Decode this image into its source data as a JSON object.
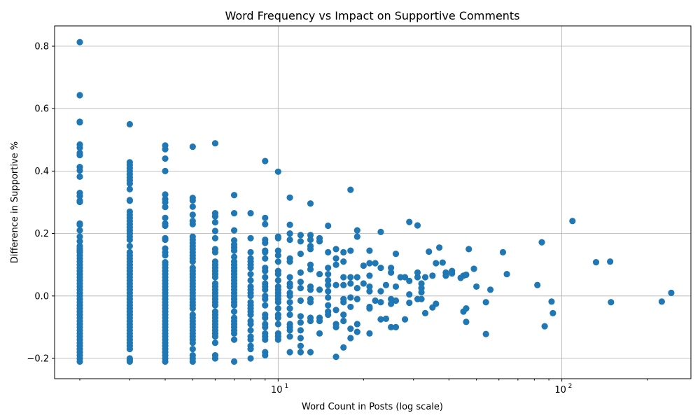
{
  "chart_data": {
    "type": "scatter",
    "title": "Word Frequency vs Impact on Supportive Comments",
    "xlabel": "Word Count in Posts (log scale)",
    "ylabel": "Difference in Supportive %",
    "x_scale": "log",
    "xlim": [
      1.63,
      285
    ],
    "ylim": [
      -0.265,
      0.865
    ],
    "grid": true,
    "color": "#1f77b4",
    "x_major_ticks": [
      {
        "value": 10,
        "base": "10",
        "exp": "1"
      },
      {
        "value": 100,
        "base": "10",
        "exp": "2"
      }
    ],
    "y_ticks": [
      {
        "value": -0.2,
        "label": "−0.2"
      },
      {
        "value": 0.0,
        "label": "0.0"
      },
      {
        "value": 0.2,
        "label": "0.2"
      },
      {
        "value": 0.4,
        "label": "0.4"
      },
      {
        "value": 0.6,
        "label": "0.6"
      },
      {
        "value": 0.8,
        "label": "0.8"
      }
    ],
    "columns": [
      {
        "x": 2,
        "y": [
          0.813,
          0.643,
          0.558,
          0.556,
          0.485,
          0.475,
          0.458,
          0.451,
          0.413,
          0.402,
          0.382,
          0.33,
          0.32,
          0.305,
          0.302,
          0.301,
          0.232,
          0.228,
          0.21,
          0.19,
          0.175,
          0.16,
          0.152,
          0.145,
          0.14,
          0.13,
          0.12,
          0.11,
          0.1,
          0.09,
          0.08,
          0.07,
          0.06,
          0.05,
          0.04,
          0.03,
          0.02,
          0.01,
          0.0,
          -0.01,
          -0.02,
          -0.03,
          -0.04,
          -0.05,
          -0.06,
          -0.07,
          -0.08,
          -0.09,
          -0.1,
          -0.11,
          -0.12,
          -0.13,
          -0.14,
          -0.15,
          -0.16,
          -0.17,
          -0.18,
          -0.19,
          -0.2,
          -0.21
        ]
      },
      {
        "x": 3,
        "y": [
          0.55,
          0.428,
          0.42,
          0.41,
          0.4,
          0.39,
          0.38,
          0.37,
          0.36,
          0.342,
          0.307,
          0.305,
          0.27,
          0.26,
          0.25,
          0.24,
          0.23,
          0.22,
          0.21,
          0.2,
          0.19,
          0.18,
          0.16,
          0.14,
          0.13,
          0.12,
          0.11,
          0.1,
          0.09,
          0.08,
          0.07,
          0.06,
          0.05,
          0.04,
          0.03,
          0.02,
          0.01,
          0.0,
          -0.01,
          -0.02,
          -0.03,
          -0.04,
          -0.05,
          -0.06,
          -0.07,
          -0.08,
          -0.09,
          -0.1,
          -0.11,
          -0.12,
          -0.13,
          -0.14,
          -0.15,
          -0.16,
          -0.17,
          -0.2,
          -0.205,
          -0.21
        ]
      },
      {
        "x": 4,
        "y": [
          0.482,
          0.47,
          0.44,
          0.4,
          0.325,
          0.31,
          0.3,
          0.285,
          0.25,
          0.232,
          0.225,
          0.185,
          0.18,
          0.152,
          0.14,
          0.13,
          0.108,
          0.1,
          0.09,
          0.08,
          0.07,
          0.06,
          0.05,
          0.04,
          0.03,
          0.02,
          0.01,
          0.0,
          -0.01,
          -0.02,
          -0.03,
          -0.04,
          -0.05,
          -0.06,
          -0.07,
          -0.08,
          -0.09,
          -0.1,
          -0.11,
          -0.12,
          -0.13,
          -0.14,
          -0.15,
          -0.16,
          -0.17,
          -0.18,
          -0.19,
          -0.2,
          -0.21
        ]
      },
      {
        "x": 5,
        "y": [
          0.478,
          0.314,
          0.306,
          0.286,
          0.26,
          0.24,
          0.23,
          0.19,
          0.18,
          0.17,
          0.16,
          0.15,
          0.14,
          0.13,
          0.12,
          0.11,
          0.09,
          0.08,
          0.07,
          0.06,
          0.05,
          0.04,
          0.03,
          0.02,
          0.01,
          0.0,
          -0.01,
          -0.02,
          -0.03,
          -0.04,
          -0.06,
          -0.07,
          -0.08,
          -0.09,
          -0.1,
          -0.11,
          -0.12,
          -0.13,
          -0.14,
          -0.15,
          -0.17,
          -0.19,
          -0.2,
          -0.21
        ]
      },
      {
        "x": 6,
        "y": [
          0.489,
          0.265,
          0.255,
          0.236,
          0.208,
          0.185,
          0.15,
          0.14,
          0.11,
          0.1,
          0.09,
          0.08,
          0.07,
          0.06,
          0.04,
          0.03,
          0.02,
          0.01,
          0.0,
          -0.01,
          -0.02,
          -0.03,
          -0.05,
          -0.06,
          -0.07,
          -0.08,
          -0.09,
          -0.1,
          -0.11,
          -0.12,
          -0.13,
          -0.15,
          -0.19,
          -0.2
        ]
      },
      {
        "x": 7,
        "y": [
          0.323,
          0.265,
          0.21,
          0.178,
          0.165,
          0.155,
          0.145,
          0.125,
          0.11,
          0.1,
          0.09,
          0.08,
          0.07,
          0.06,
          0.05,
          0.04,
          0.03,
          0.02,
          0.01,
          0.0,
          -0.01,
          -0.02,
          -0.03,
          -0.05,
          -0.07,
          -0.08,
          -0.09,
          -0.1,
          -0.11,
          -0.12,
          -0.14,
          -0.21
        ]
      },
      {
        "x": 8,
        "y": [
          0.265,
          0.185,
          0.14,
          0.12,
          0.11,
          0.1,
          0.09,
          0.07,
          0.05,
          0.03,
          0.02,
          0.01,
          0.0,
          -0.02,
          -0.03,
          -0.04,
          -0.05,
          -0.06,
          -0.08,
          -0.09,
          -0.11,
          -0.13,
          -0.14,
          -0.16,
          -0.17,
          -0.2
        ]
      },
      {
        "x": 9,
        "y": [
          0.432,
          0.25,
          0.23,
          0.18,
          0.17,
          0.145,
          0.14,
          0.12,
          0.09,
          0.08,
          0.06,
          0.04,
          0.03,
          0.02,
          0.0,
          -0.01,
          -0.03,
          -0.06,
          -0.07,
          -0.09,
          -0.1,
          -0.12,
          -0.13,
          -0.14,
          -0.18,
          -0.19
        ]
      },
      {
        "x": 10,
        "y": [
          0.398,
          0.19,
          0.185,
          0.145,
          0.13,
          0.11,
          0.08,
          0.07,
          0.05,
          0.03,
          0.02,
          0.01,
          0.0,
          -0.01,
          -0.02,
          -0.04,
          -0.06,
          -0.07,
          -0.09,
          -0.12,
          -0.13,
          -0.14
        ]
      },
      {
        "x": 11,
        "y": [
          0.315,
          0.228,
          0.2,
          0.18,
          0.12,
          0.11,
          0.06,
          0.04,
          0.03,
          0.01,
          0.0,
          -0.02,
          -0.04,
          -0.06,
          -0.09,
          -0.1,
          -0.11,
          -0.13,
          -0.18
        ]
      },
      {
        "x": 12,
        "y": [
          0.195,
          0.175,
          0.135,
          0.075,
          0.045,
          0.025,
          -0.015,
          -0.065,
          -0.085,
          -0.11,
          -0.135,
          -0.16,
          -0.18
        ]
      },
      {
        "x": 13,
        "y": [
          0.296,
          0.195,
          0.18,
          0.16,
          0.15,
          0.1,
          0.085,
          0.03,
          0.02,
          -0.01,
          -0.02,
          -0.07,
          -0.08,
          -0.18
        ]
      },
      {
        "x": 14,
        "y": [
          0.185,
          0.175,
          0.07,
          0.02,
          -0.07,
          -0.08,
          -0.12
        ]
      },
      {
        "x": 15,
        "y": [
          0.225,
          0.14,
          0.09,
          0.07,
          0.05,
          0.035,
          0.015,
          -0.005,
          -0.03,
          -0.05,
          -0.06
        ]
      },
      {
        "x": 16,
        "y": [
          0.15,
          0.12,
          0.1,
          0.035,
          -0.045,
          -0.09,
          -0.1,
          -0.195
        ]
      },
      {
        "x": 17,
        "y": [
          0.14,
          0.11,
          0.06,
          0.035,
          -0.01,
          -0.02,
          -0.06,
          -0.08,
          -0.165
        ]
      },
      {
        "x": 18,
        "y": [
          0.34,
          0.145,
          0.06,
          0.04,
          -0.005,
          -0.035,
          -0.105,
          -0.135
        ]
      },
      {
        "x": 19,
        "y": [
          0.21,
          0.19,
          0.06,
          0.025,
          -0.01,
          -0.09,
          -0.115
        ]
      },
      {
        "x": 20,
        "y": [
          0.097,
          0.04
        ]
      },
      {
        "x": 21,
        "y": [
          0.145,
          0.105,
          0.065,
          0.03,
          0.015,
          -0.035,
          -0.04,
          -0.12
        ]
      },
      {
        "x": 22,
        "y": [
          0.105,
          -0.015
        ]
      },
      {
        "x": 23,
        "y": [
          0.205,
          0.09,
          0.015,
          -0.02,
          -0.075
        ]
      },
      {
        "x": 24,
        "y": [
          0.035,
          -0.073
        ]
      },
      {
        "x": 25,
        "y": [
          0.09,
          0.075,
          -0.01,
          -0.025,
          -0.1
        ]
      },
      {
        "x": 26,
        "y": [
          0.135,
          0.03,
          -0.015,
          -0.1
        ]
      }
    ],
    "points": [
      [
        27,
        0.06
      ],
      [
        28,
        0.06
      ],
      [
        28,
        -0.075
      ],
      [
        29,
        0.237
      ],
      [
        29,
        0.048
      ],
      [
        29,
        0.005
      ],
      [
        29,
        -0.022
      ],
      [
        31,
        0.226
      ],
      [
        31,
        0.075
      ],
      [
        31,
        0.06
      ],
      [
        32,
        0.04
      ],
      [
        32,
        0.025
      ],
      [
        32,
        0.012
      ],
      [
        31,
        -0.01
      ],
      [
        32,
        -0.01
      ],
      [
        33,
        0.06
      ],
      [
        33,
        -0.055
      ],
      [
        34,
        0.142
      ],
      [
        35,
        0.065
      ],
      [
        35,
        -0.037
      ],
      [
        36,
        0.105
      ],
      [
        36,
        -0.025
      ],
      [
        37,
        0.155
      ],
      [
        38,
        0.107
      ],
      [
        39,
        0.075
      ],
      [
        39,
        0.065
      ],
      [
        41,
        0.08
      ],
      [
        41,
        0.072
      ],
      [
        44,
        0.058
      ],
      [
        45,
        0.065
      ],
      [
        45,
        -0.05
      ],
      [
        46,
        0.068
      ],
      [
        46,
        -0.04
      ],
      [
        46,
        -0.083
      ],
      [
        47,
        0.15
      ],
      [
        49,
        0.087
      ],
      [
        50,
        0.03
      ],
      [
        54,
        -0.02
      ],
      [
        54,
        -0.122
      ],
      [
        56,
        0.02
      ],
      [
        62,
        0.14
      ],
      [
        64,
        0.07
      ],
      [
        82,
        0.035
      ],
      [
        85,
        0.172
      ],
      [
        87,
        -0.097
      ],
      [
        92,
        -0.018
      ],
      [
        93,
        -0.055
      ],
      [
        109,
        0.24
      ],
      [
        132,
        0.108
      ],
      [
        148,
        0.11
      ],
      [
        149,
        -0.02
      ],
      [
        225,
        -0.018
      ],
      [
        243,
        0.01
      ]
    ]
  }
}
